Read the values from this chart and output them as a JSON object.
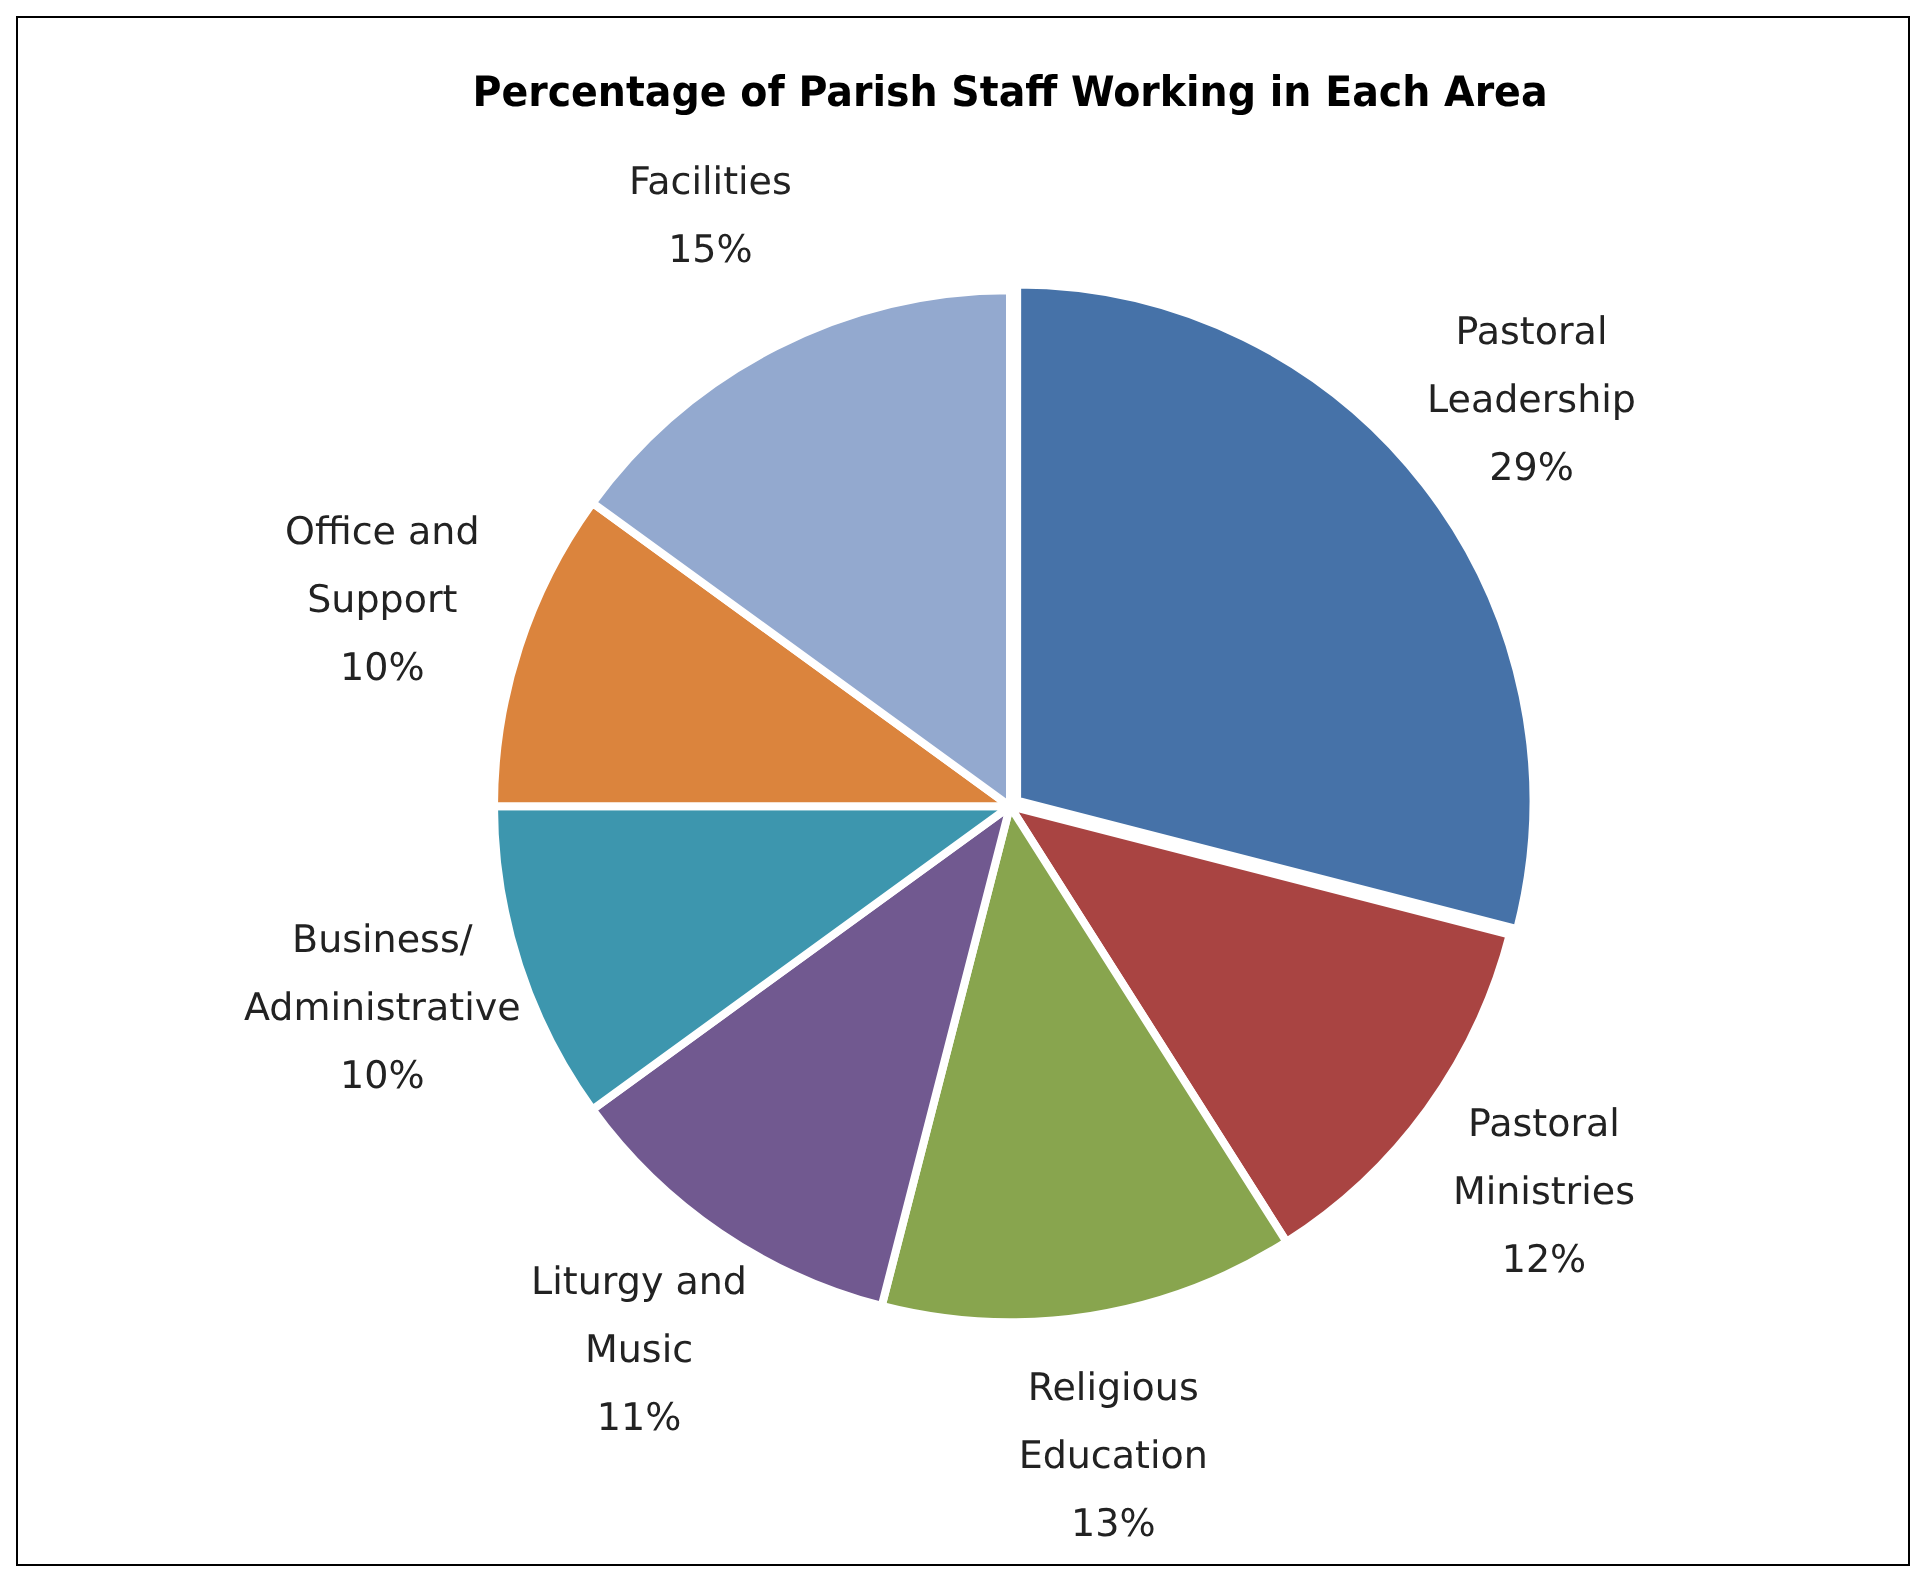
{
  "chart_data": {
    "type": "pie",
    "title": "Percentage of Parish Staff Working in Each Area",
    "categories": [
      "Pastoral Leadership",
      "Pastoral Ministries",
      "Religious Education",
      "Liturgy and Music",
      "Business/ Administrative",
      "Office and Support",
      "Facilities"
    ],
    "values": [
      29,
      12,
      13,
      11,
      10,
      10,
      15
    ],
    "colors": [
      "#4672a8",
      "#a94442",
      "#88a54e",
      "#715990",
      "#3d96ae",
      "#db843d",
      "#93a9cf"
    ],
    "value_labels": [
      "29%",
      "12%",
      "13%",
      "11%",
      "10%",
      "10%",
      "15%"
    ],
    "legend": false
  }
}
